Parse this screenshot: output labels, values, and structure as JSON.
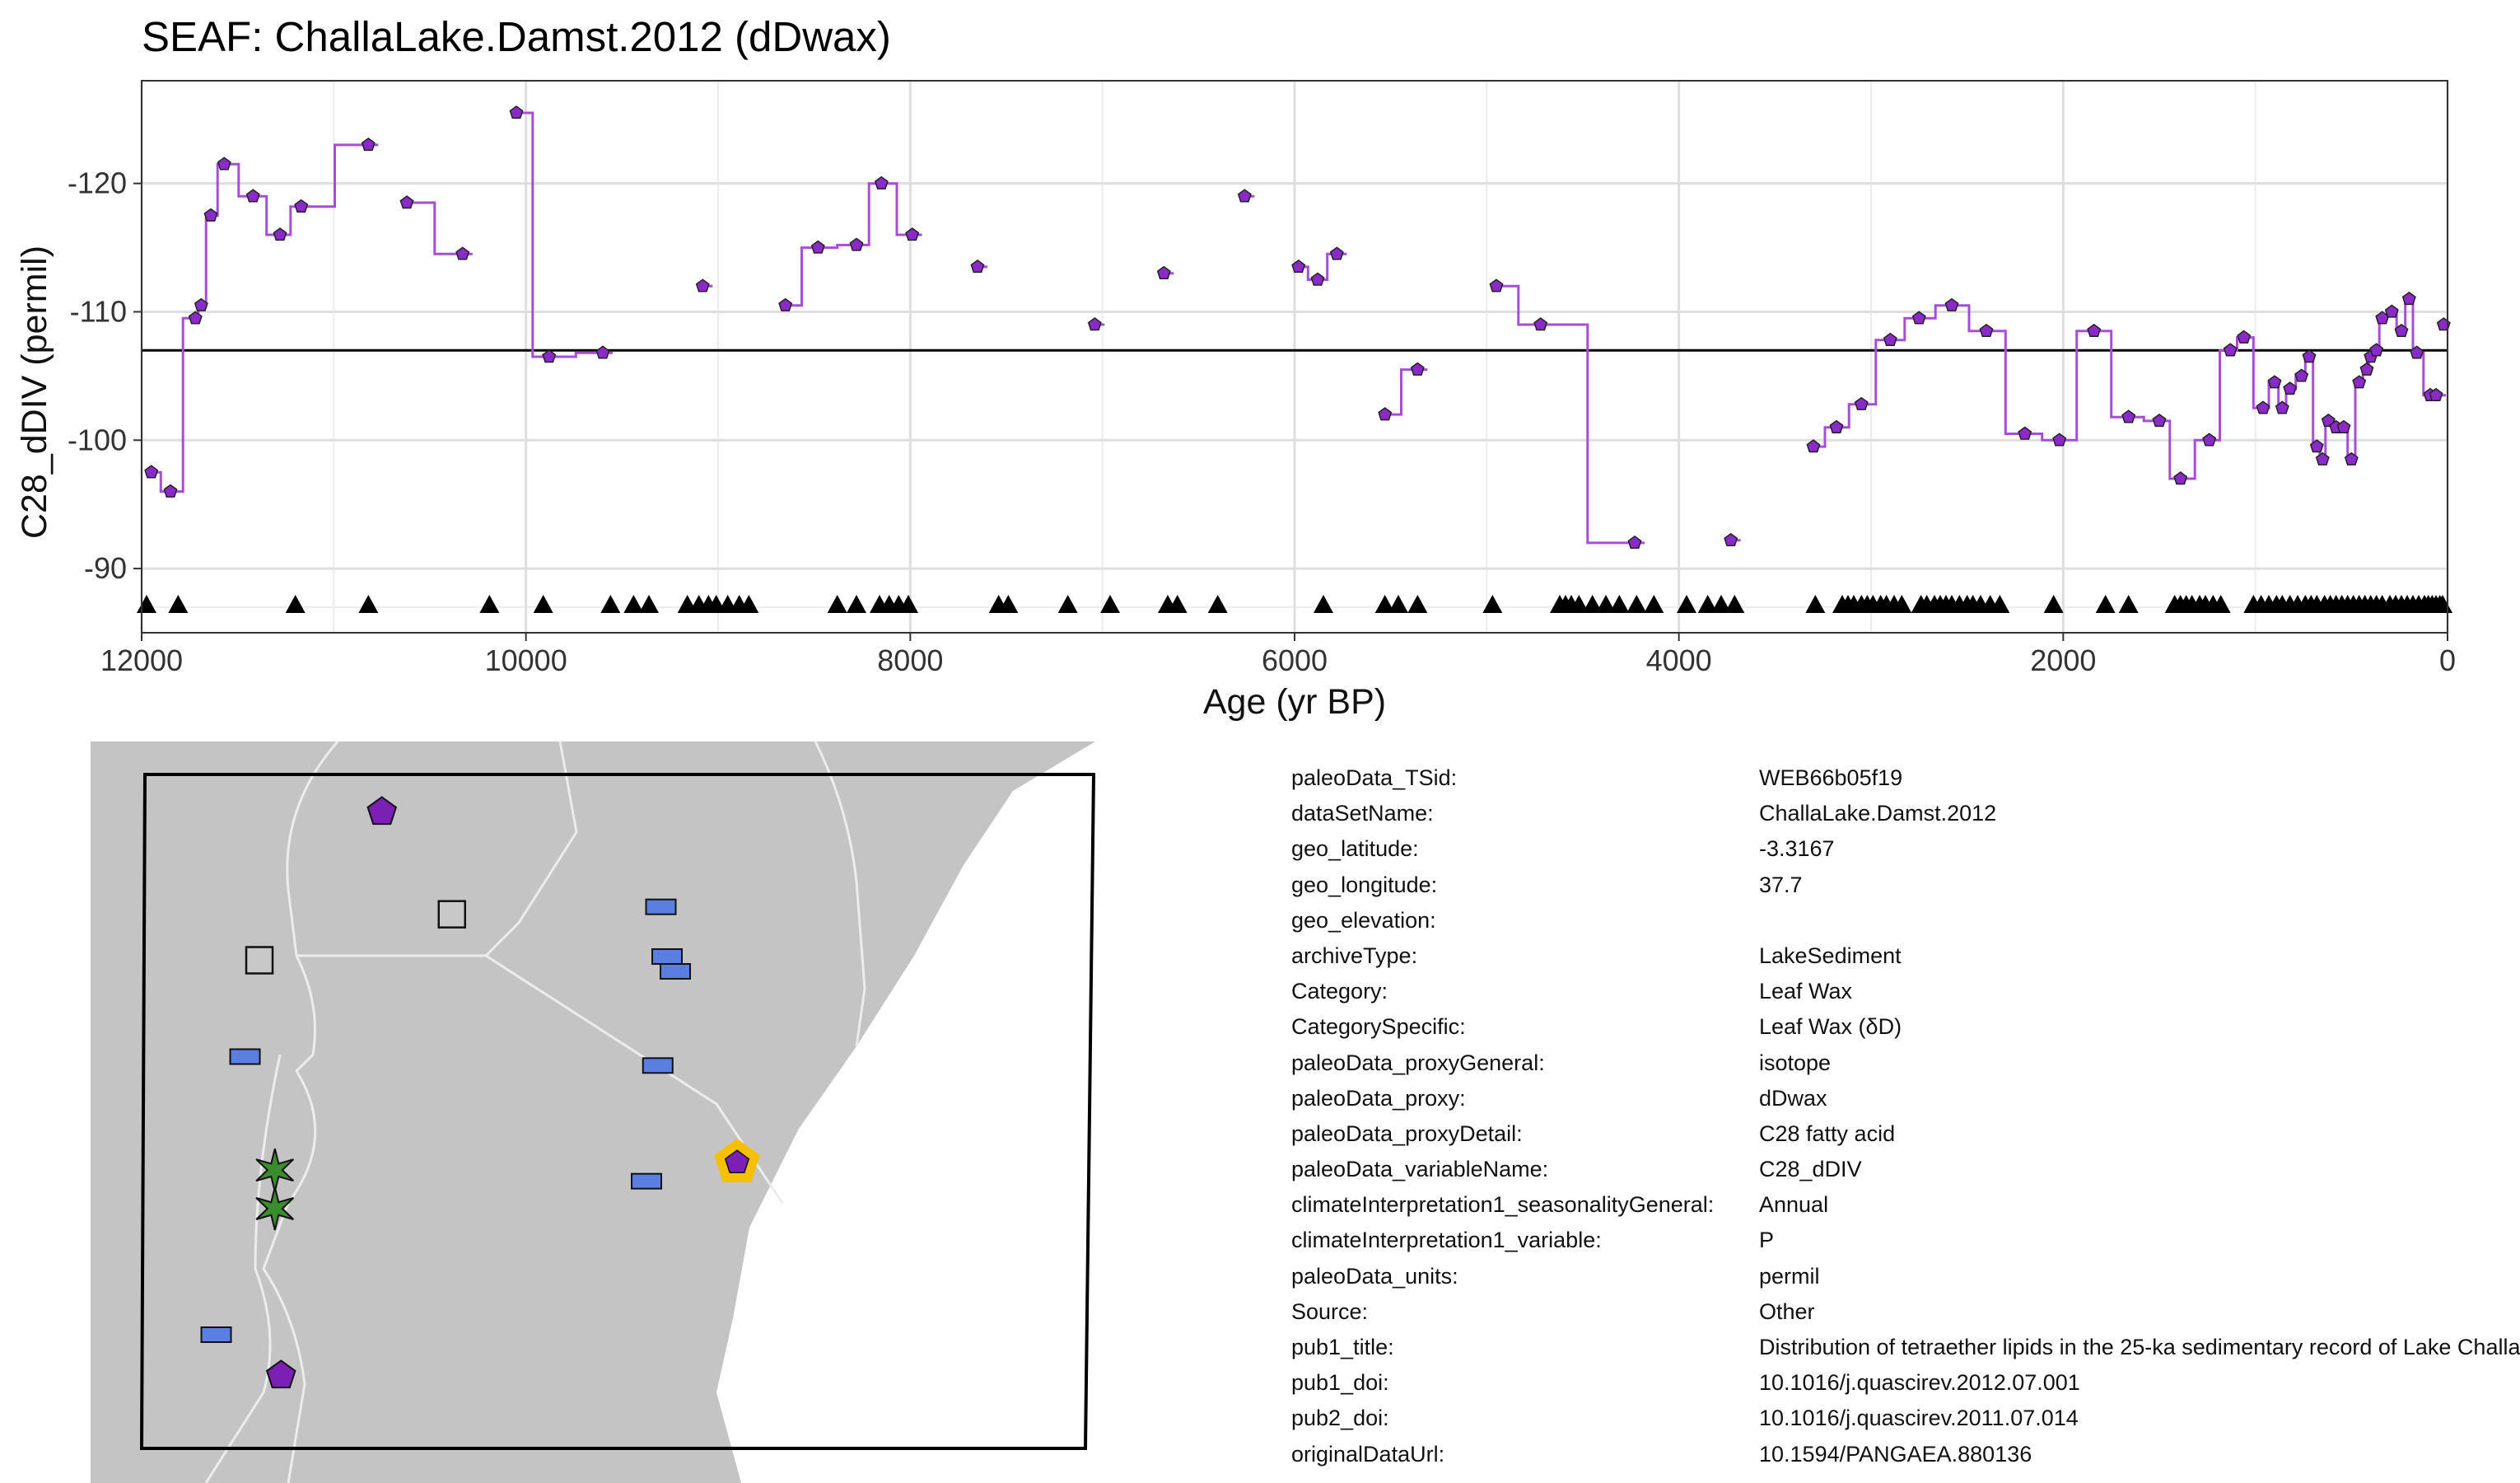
{
  "chart_data": {
    "type": "line",
    "title": "SEAF: ChallaLake.Damst.2012 (dDwax)",
    "xlabel": "Age (yr BP)",
    "ylabel": "C28_dDIV (permil)",
    "x_reversed": true,
    "xlim": [
      12000,
      0
    ],
    "ylim": [
      -85,
      -128
    ],
    "x_ticks": [
      12000,
      10000,
      8000,
      6000,
      4000,
      2000,
      0
    ],
    "y_ticks": [
      -120,
      -110,
      -100,
      -90
    ],
    "mean_line": -107,
    "series": [
      {
        "color": "#a64fd6",
        "points": [
          [
            11950,
            -97.5
          ],
          [
            11850,
            -96
          ],
          [
            11720,
            -109.5
          ],
          [
            11690,
            -110.5
          ],
          [
            11640,
            -117.5
          ],
          [
            11570,
            -121.5
          ],
          [
            11420,
            -119
          ],
          [
            11280,
            -116
          ],
          [
            11170,
            -118.2
          ],
          [
            10820,
            -123
          ],
          [
            10620,
            -118.5
          ],
          [
            10330,
            -114.5
          ],
          [
            10050,
            -125.5
          ],
          [
            9880,
            -106.5
          ],
          [
            9600,
            -106.8
          ],
          [
            9080,
            -112
          ],
          [
            8650,
            -110.5
          ],
          [
            8480,
            -115
          ],
          [
            8280,
            -115.2
          ],
          [
            8150,
            -120
          ],
          [
            7990,
            -116
          ],
          [
            7650,
            -113.5
          ],
          [
            7040,
            -109
          ],
          [
            6680,
            -113
          ],
          [
            6260,
            -119
          ],
          [
            5980,
            -113.5
          ],
          [
            5880,
            -112.5
          ],
          [
            5780,
            -114.5
          ],
          [
            5530,
            -102
          ],
          [
            5360,
            -105.5
          ],
          [
            4950,
            -112
          ],
          [
            4720,
            -109
          ],
          [
            4230,
            -92
          ],
          [
            3730,
            -92.2
          ],
          [
            3300,
            -99.5
          ],
          [
            3180,
            -101
          ],
          [
            3050,
            -102.8
          ],
          [
            2900,
            -107.8
          ],
          [
            2750,
            -109.5
          ],
          [
            2580,
            -110.5
          ],
          [
            2400,
            -108.5
          ],
          [
            2200,
            -100.5
          ],
          [
            2020,
            -100
          ],
          [
            1840,
            -108.5
          ],
          [
            1660,
            -101.8
          ],
          [
            1500,
            -101.5
          ],
          [
            1390,
            -97
          ],
          [
            1240,
            -100
          ],
          [
            1130,
            -107
          ],
          [
            1060,
            -108
          ],
          [
            960,
            -102.5
          ],
          [
            900,
            -104.5
          ],
          [
            860,
            -102.5
          ],
          [
            820,
            -104
          ],
          [
            760,
            -105
          ],
          [
            720,
            -106.5
          ],
          [
            680,
            -99.5
          ],
          [
            650,
            -98.5
          ],
          [
            620,
            -101.5
          ],
          [
            580,
            -101
          ],
          [
            540,
            -101
          ],
          [
            500,
            -98.5
          ],
          [
            460,
            -104.5
          ],
          [
            420,
            -105.5
          ],
          [
            400,
            -106.5
          ],
          [
            370,
            -107
          ],
          [
            340,
            -109.5
          ],
          [
            290,
            -110
          ],
          [
            240,
            -108.5
          ],
          [
            200,
            -111
          ],
          [
            160,
            -106.8
          ],
          [
            90,
            -103.5
          ],
          [
            60,
            -103.5
          ],
          [
            20,
            -109
          ]
        ]
      }
    ],
    "age_markers": [
      11980,
      11810,
      11200,
      10820,
      10190,
      9910,
      9560,
      9440,
      9360,
      9160,
      9100,
      9050,
      9010,
      8950,
      8890,
      8840,
      8380,
      8280,
      8160,
      8110,
      8060,
      8010,
      7540,
      7490,
      7180,
      6960,
      6660,
      6610,
      6400,
      5850,
      5530,
      5460,
      5360,
      4970,
      4620,
      4590,
      4560,
      4520,
      4450,
      4380,
      4310,
      4220,
      4130,
      3960,
      3850,
      3780,
      3710,
      3290,
      3150,
      3120,
      3090,
      3050,
      3020,
      2990,
      2950,
      2920,
      2880,
      2840,
      2740,
      2710,
      2670,
      2640,
      2610,
      2580,
      2540,
      2500,
      2470,
      2430,
      2380,
      2330,
      2050,
      1780,
      1660,
      1420,
      1390,
      1360,
      1330,
      1290,
      1260,
      1220,
      1180,
      1010,
      970,
      930,
      890,
      860,
      820,
      780,
      740,
      710,
      680,
      640,
      610,
      580,
      550,
      520,
      490,
      460,
      430,
      400,
      370,
      340,
      300,
      270,
      240,
      210,
      180,
      150,
      120,
      100,
      80,
      60,
      40,
      20
    ],
    "grid": true,
    "legend": "none"
  },
  "map": {
    "markers": [
      {
        "type": "pentagon",
        "color": "#7b1fb5",
        "x": 0.283,
        "y": 0.095
      },
      {
        "type": "square",
        "color": "#c8c8c8",
        "x": 0.351,
        "y": 0.233
      },
      {
        "type": "square",
        "color": "#c8c8c8",
        "x": 0.164,
        "y": 0.295
      },
      {
        "type": "rect",
        "color": "#5b7fe0",
        "x": 0.554,
        "y": 0.223
      },
      {
        "type": "rect",
        "color": "#5b7fe0",
        "x": 0.56,
        "y": 0.29
      },
      {
        "type": "rect",
        "color": "#5b7fe0",
        "x": 0.568,
        "y": 0.31
      },
      {
        "type": "rect",
        "color": "#5b7fe0",
        "x": 0.15,
        "y": 0.425
      },
      {
        "type": "rect",
        "color": "#5b7fe0",
        "x": 0.551,
        "y": 0.437
      },
      {
        "type": "rect",
        "color": "#5b7fe0",
        "x": 0.54,
        "y": 0.593
      },
      {
        "type": "rect",
        "color": "#5b7fe0",
        "x": 0.122,
        "y": 0.8
      },
      {
        "type": "star",
        "color": "#3a8d2d",
        "x": 0.179,
        "y": 0.578
      },
      {
        "type": "star",
        "color": "#3a8d2d",
        "x": 0.179,
        "y": 0.63
      },
      {
        "type": "pentagon",
        "color": "#7b1fb5",
        "x": 0.185,
        "y": 0.855
      },
      {
        "type": "pentagon-highlight",
        "color": "#7b1fb5",
        "ring": "#f5c000",
        "x": 0.628,
        "y": 0.568
      }
    ]
  },
  "metadata": [
    {
      "key": "paleoData_TSid:",
      "value": "WEB66b05f19"
    },
    {
      "key": "dataSetName:",
      "value": "ChallaLake.Damst.2012"
    },
    {
      "key": "geo_latitude:",
      "value": "-3.3167"
    },
    {
      "key": "geo_longitude:",
      "value": "37.7"
    },
    {
      "key": "geo_elevation:",
      "value": ""
    },
    {
      "key": "archiveType:",
      "value": "LakeSediment"
    },
    {
      "key": "Category:",
      "value": "Leaf Wax"
    },
    {
      "key": "CategorySpecific:",
      "value": "Leaf Wax (δD)"
    },
    {
      "key": "paleoData_proxyGeneral:",
      "value": "isotope"
    },
    {
      "key": "paleoData_proxy:",
      "value": "dDwax"
    },
    {
      "key": "paleoData_proxyDetail:",
      "value": "C28 fatty acid"
    },
    {
      "key": "paleoData_variableName:",
      "value": "C28_dDIV"
    },
    {
      "key": "climateInterpretation1_seasonalityGeneral:",
      "value": "Annual"
    },
    {
      "key": "climateInterpretation1_variable:",
      "value": "P"
    },
    {
      "key": "paleoData_units:",
      "value": "permil"
    },
    {
      "key": "Source:",
      "value": "Other"
    },
    {
      "key": "pub1_title:",
      "value": "Distribution of tetraether lipids in the 25-ka sedimentary record of Lake Challa"
    },
    {
      "key": "pub1_doi:",
      "value": "10.1016/j.quascirev.2012.07.001"
    },
    {
      "key": "pub2_doi:",
      "value": "10.1016/j.quascirev.2011.07.014"
    },
    {
      "key": "originalDataUrl:",
      "value": "10.1594/PANGAEA.880136"
    }
  ]
}
